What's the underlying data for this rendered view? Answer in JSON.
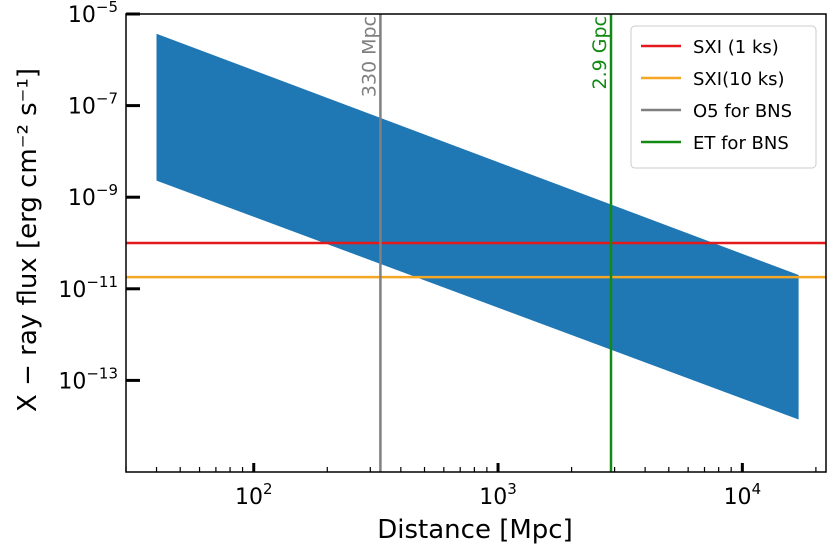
{
  "chart_data": {
    "type": "area",
    "title": "",
    "xlabel": "Distance [Mpc]",
    "ylabel": "X − ray flux [erg cm⁻² s⁻¹]",
    "x_scale": "log",
    "y_scale": "log",
    "xlim": [
      30,
      22000
    ],
    "ylim": [
      1e-15,
      1e-05
    ],
    "x_ticks": [
      {
        "value": 100,
        "base": "10",
        "exp": "2"
      },
      {
        "value": 1000,
        "base": "10",
        "exp": "3"
      },
      {
        "value": 10000,
        "base": "10",
        "exp": "4"
      }
    ],
    "y_ticks": [
      {
        "value": 1e-05,
        "base": "10",
        "exp": "−5"
      },
      {
        "value": 1e-07,
        "base": "10",
        "exp": "−7"
      },
      {
        "value": 1e-09,
        "base": "10",
        "exp": "−9"
      },
      {
        "value": 1e-11,
        "base": "10",
        "exp": "−11"
      },
      {
        "value": 1e-13,
        "base": "10",
        "exp": "−13"
      }
    ],
    "band": {
      "color": "#1f77b4",
      "x": [
        40,
        17000
      ],
      "upper": [
        3.7e-06,
        2e-11
      ],
      "lower": [
        2.3e-09,
        1.4e-14
      ]
    },
    "hlines": [
      {
        "name": "SXI (1 ks)",
        "y": 1e-10,
        "color": "#e31a1c"
      },
      {
        "name": "SXI(10 ks)",
        "y": 1.8e-11,
        "color": "#f5a623"
      }
    ],
    "vlines": [
      {
        "name": "O5 for BNS",
        "x": 330,
        "color": "#808080",
        "label": "330 Mpc"
      },
      {
        "name": "ET for BNS",
        "x": 2900,
        "color": "#138a13",
        "label": "2.9 Gpc"
      }
    ],
    "grid": false,
    "legend_position": "top-right"
  }
}
